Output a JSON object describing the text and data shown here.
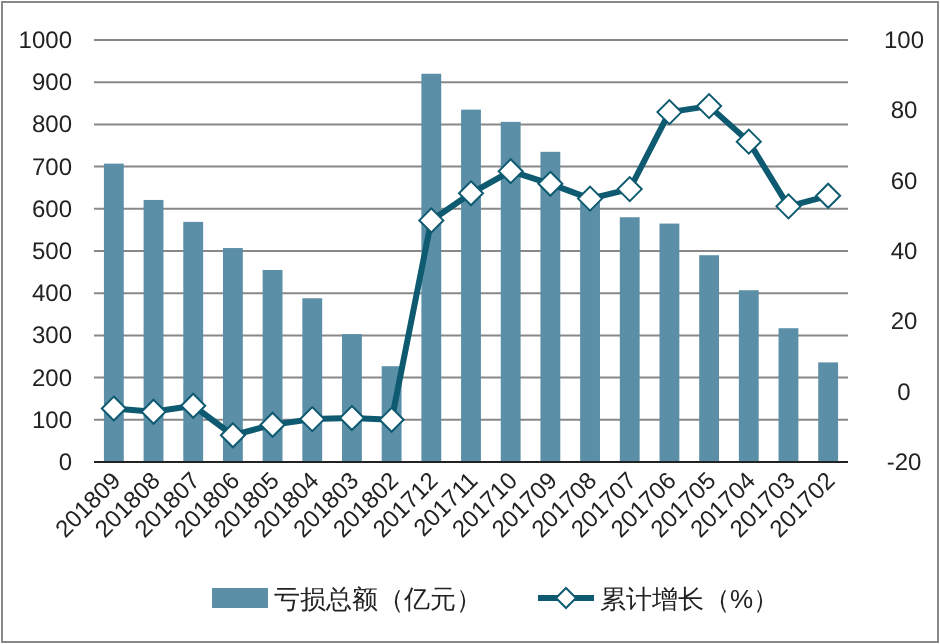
{
  "chart_data": {
    "type": "bar",
    "categories": [
      "201809",
      "201808",
      "201807",
      "201806",
      "201805",
      "201804",
      "201803",
      "201802",
      "201712",
      "201711",
      "201710",
      "201709",
      "201708",
      "201707",
      "201706",
      "201705",
      "201704",
      "201703",
      "201702"
    ],
    "series": [
      {
        "name": "亏损总额（亿元）",
        "color": "#5b8fa7",
        "values": [
          707,
          621,
          569,
          507,
          455,
          388,
          303,
          227,
          920,
          835,
          806,
          735,
          625,
          580,
          565,
          490,
          407,
          317,
          236
        ]
      },
      {
        "name": "累计增长（%）",
        "type": "line",
        "axis": "y2",
        "color": "#0e5a71",
        "marker": "diamond",
        "values": [
          -4.8,
          -5.7,
          -4,
          -12.4,
          -9.4,
          -7.8,
          -7.5,
          -8,
          48.7,
          56.4,
          62.7,
          59.1,
          54.9,
          57.6,
          79.5,
          81.2,
          71.1,
          52.7,
          55.7
        ]
      }
    ],
    "ylim": [
      0,
      1000
    ],
    "yticks": [
      0,
      100,
      200,
      300,
      400,
      500,
      600,
      700,
      800,
      900,
      1000
    ],
    "y2lim": [
      -20,
      100
    ],
    "y2ticks": [
      -20,
      0,
      20,
      40,
      60,
      80,
      100
    ],
    "grid": "y",
    "legend": "bottom"
  }
}
